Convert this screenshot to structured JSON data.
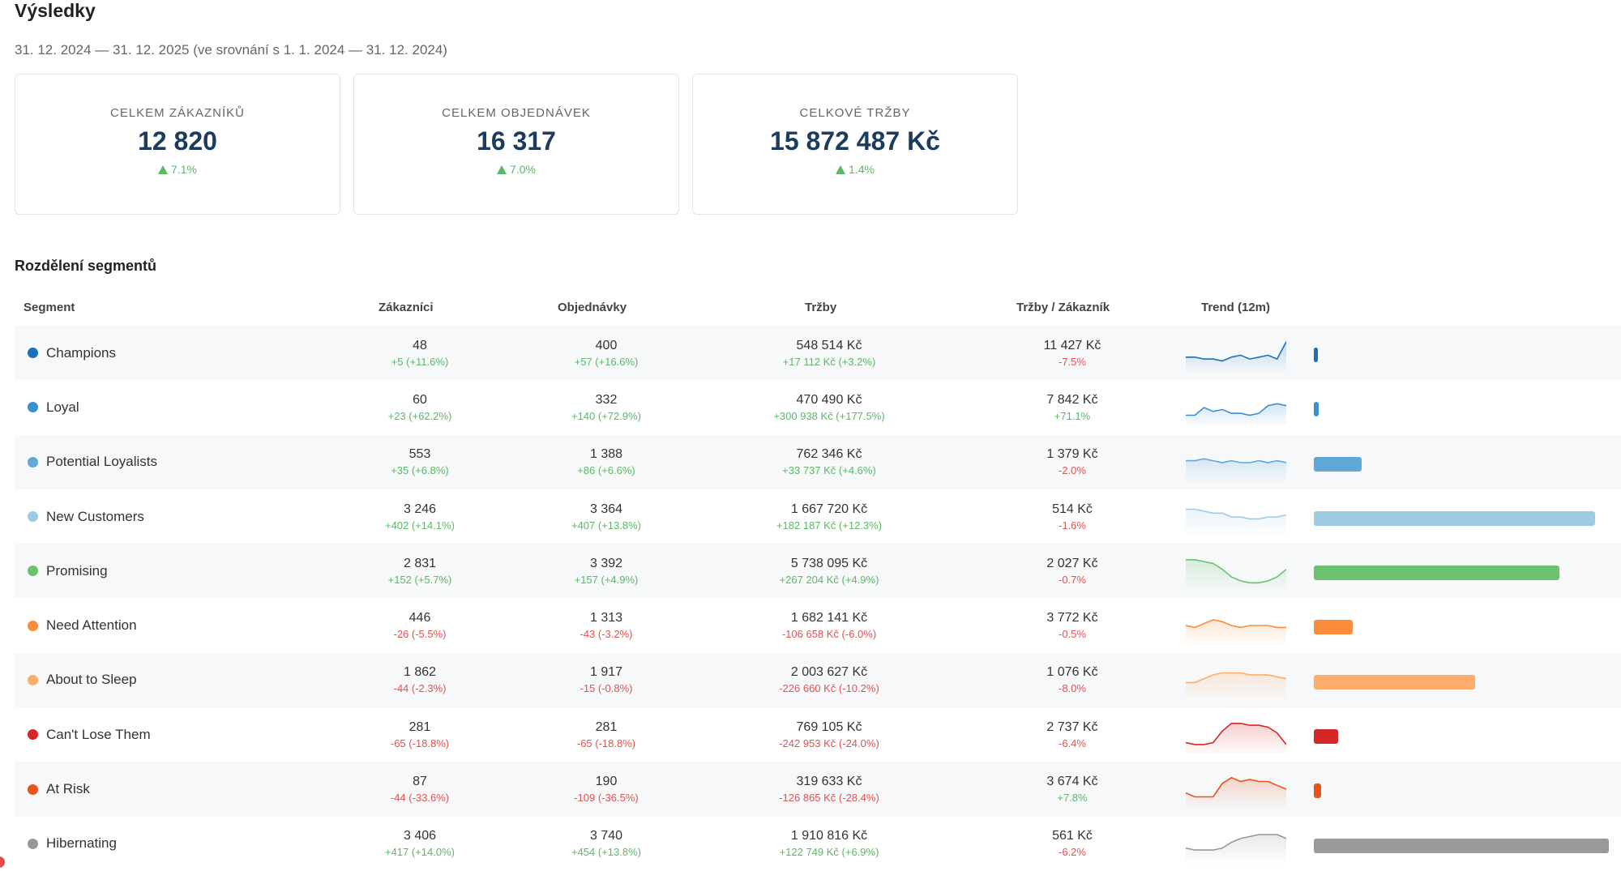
{
  "page": {
    "title": "Výsledky",
    "date_range": "31. 12. 2024 — 31. 12. 2025 (ve srovnání s 1. 1. 2024 — 31. 12. 2024)"
  },
  "kpis": [
    {
      "label": "CELKEM ZÁKAZNÍKŮ",
      "value": "12 820",
      "delta": "7.1%"
    },
    {
      "label": "CELKEM OBJEDNÁVEK",
      "value": "16 317",
      "delta": "7.0%"
    },
    {
      "label": "CELKOVÉ TRŽBY",
      "value": "15 872 487 Kč",
      "delta": "1.4%"
    }
  ],
  "segments": {
    "title": "Rozdělení segmentů",
    "columns": {
      "segment": "Segment",
      "customers": "Zákazníci",
      "orders": "Objednávky",
      "revenue": "Tržby",
      "revenue_per_customer": "Tržby / Zákazník",
      "trend": "Trend (12m)"
    },
    "bar_max": 3406,
    "rows": [
      {
        "name": "Champions",
        "color": "#1f6fb8",
        "customers": "48",
        "customers_delta": "+5 (+11.6%)",
        "customers_pos": true,
        "orders": "400",
        "orders_delta": "+57 (+16.6%)",
        "orders_pos": true,
        "revenue": "548 514 Kč",
        "revenue_delta": "+17 112 Kč (+3.2%)",
        "revenue_pos": true,
        "rpc": "11 427 Kč",
        "rpc_delta": "-7.5%",
        "rpc_pos": false,
        "trend": [
          6,
          6,
          5,
          5,
          4,
          6,
          7,
          5,
          6,
          7,
          5,
          14
        ],
        "bar_value": 48
      },
      {
        "name": "Loyal",
        "color": "#3a8fd0",
        "customers": "60",
        "customers_delta": "+23 (+62.2%)",
        "customers_pos": true,
        "orders": "332",
        "orders_delta": "+140 (+72.9%)",
        "orders_pos": true,
        "revenue": "470 490 Kč",
        "revenue_delta": "+300 938 Kč (+177.5%)",
        "revenue_pos": true,
        "rpc": "7 842 Kč",
        "rpc_delta": "+71.1%",
        "rpc_pos": true,
        "trend": [
          4,
          4,
          8,
          6,
          7,
          5,
          5,
          4,
          5,
          9,
          10,
          9
        ],
        "bar_value": 60
      },
      {
        "name": "Potential Loyalists",
        "color": "#62a8d6",
        "customers": "553",
        "customers_delta": "+35 (+6.8%)",
        "customers_pos": true,
        "orders": "1 388",
        "orders_delta": "+86 (+6.6%)",
        "orders_pos": true,
        "revenue": "762 346 Kč",
        "revenue_delta": "+33 737 Kč (+4.6%)",
        "revenue_pos": true,
        "rpc": "1 379 Kč",
        "rpc_delta": "-2.0%",
        "rpc_pos": false,
        "trend": [
          9,
          9,
          10,
          9,
          8,
          9,
          8,
          8,
          9,
          8,
          9,
          8
        ],
        "bar_value": 553
      },
      {
        "name": "New Customers",
        "color": "#9ecae1",
        "customers": "3 246",
        "customers_delta": "+402 (+14.1%)",
        "customers_pos": true,
        "orders": "3 364",
        "orders_delta": "+407 (+13.8%)",
        "orders_pos": true,
        "revenue": "1 667 720 Kč",
        "revenue_delta": "+182 187 Kč (+12.3%)",
        "revenue_pos": true,
        "rpc": "514 Kč",
        "rpc_delta": "-1.6%",
        "rpc_pos": false,
        "trend": [
          12,
          12,
          11,
          10,
          10,
          8,
          8,
          7,
          7,
          8,
          8,
          9
        ],
        "bar_value": 3246
      },
      {
        "name": "Promising",
        "color": "#6cc16e",
        "customers": "2 831",
        "customers_delta": "+152 (+5.7%)",
        "customers_pos": true,
        "orders": "3 392",
        "orders_delta": "+157 (+4.9%)",
        "orders_pos": true,
        "revenue": "5 738 095 Kč",
        "revenue_delta": "+267 204 Kč (+4.9%)",
        "revenue_pos": true,
        "rpc": "2 027 Kč",
        "rpc_delta": "-0.7%",
        "rpc_pos": false,
        "trend": [
          14,
          14,
          13,
          12,
          9,
          5,
          3,
          2,
          2,
          3,
          5,
          9
        ],
        "bar_value": 2831
      },
      {
        "name": "Need Attention",
        "color": "#fb8c3c",
        "customers": "446",
        "customers_delta": "-26 (-5.5%)",
        "customers_pos": false,
        "orders": "1 313",
        "orders_delta": "-43 (-3.2%)",
        "orders_pos": false,
        "revenue": "1 682 141 Kč",
        "revenue_delta": "-106 658 Kč (-6.0%)",
        "revenue_pos": false,
        "rpc": "3 772 Kč",
        "rpc_delta": "-0.5%",
        "rpc_pos": false,
        "trend": [
          8,
          7,
          9,
          11,
          10,
          8,
          7,
          8,
          8,
          8,
          7,
          7
        ],
        "bar_value": 446
      },
      {
        "name": "About to Sleep",
        "color": "#fdad6a",
        "customers": "1 862",
        "customers_delta": "-44 (-2.3%)",
        "customers_pos": false,
        "orders": "1 917",
        "orders_delta": "-15 (-0.8%)",
        "orders_pos": false,
        "revenue": "2 003 627 Kč",
        "revenue_delta": "-226 660 Kč (-10.2%)",
        "revenue_pos": false,
        "rpc": "1 076 Kč",
        "rpc_delta": "-8.0%",
        "rpc_pos": false,
        "trend": [
          7,
          7,
          9,
          11,
          12,
          12,
          12,
          11,
          11,
          11,
          10,
          9
        ],
        "bar_value": 1862
      },
      {
        "name": "Can't Lose Them",
        "color": "#d62728",
        "customers": "281",
        "customers_delta": "-65 (-18.8%)",
        "customers_pos": false,
        "orders": "281",
        "orders_delta": "-65 (-18.8%)",
        "orders_pos": false,
        "revenue": "769 105 Kč",
        "revenue_delta": "-242 953 Kč (-24.0%)",
        "revenue_pos": false,
        "rpc": "2 737 Kč",
        "rpc_delta": "-6.4%",
        "rpc_pos": false,
        "trend": [
          4,
          3,
          3,
          4,
          10,
          14,
          14,
          13,
          13,
          12,
          9,
          3
        ],
        "bar_value": 281
      },
      {
        "name": "At Risk",
        "color": "#e8541a",
        "customers": "87",
        "customers_delta": "-44 (-33.6%)",
        "customers_pos": false,
        "orders": "190",
        "orders_delta": "-109 (-36.5%)",
        "orders_pos": false,
        "revenue": "319 633 Kč",
        "revenue_delta": "-126 865 Kč (-28.4%)",
        "revenue_pos": false,
        "rpc": "3 674 Kč",
        "rpc_delta": "+7.8%",
        "rpc_pos": true,
        "trend": [
          6,
          4,
          4,
          4,
          11,
          14,
          12,
          13,
          12,
          12,
          10,
          8
        ],
        "bar_value": 87
      },
      {
        "name": "Hibernating",
        "color": "#999999",
        "customers": "3 406",
        "customers_delta": "+417 (+14.0%)",
        "customers_pos": true,
        "orders": "3 740",
        "orders_delta": "+454 (+13.8%)",
        "orders_pos": true,
        "revenue": "1 910 816 Kč",
        "revenue_delta": "+122 749 Kč (+6.9%)",
        "revenue_pos": true,
        "rpc": "561 Kč",
        "rpc_delta": "-6.2%",
        "rpc_pos": false,
        "trend": [
          6,
          5,
          5,
          5,
          6,
          9,
          11,
          12,
          13,
          13,
          13,
          11
        ],
        "bar_value": 3406
      }
    ]
  }
}
